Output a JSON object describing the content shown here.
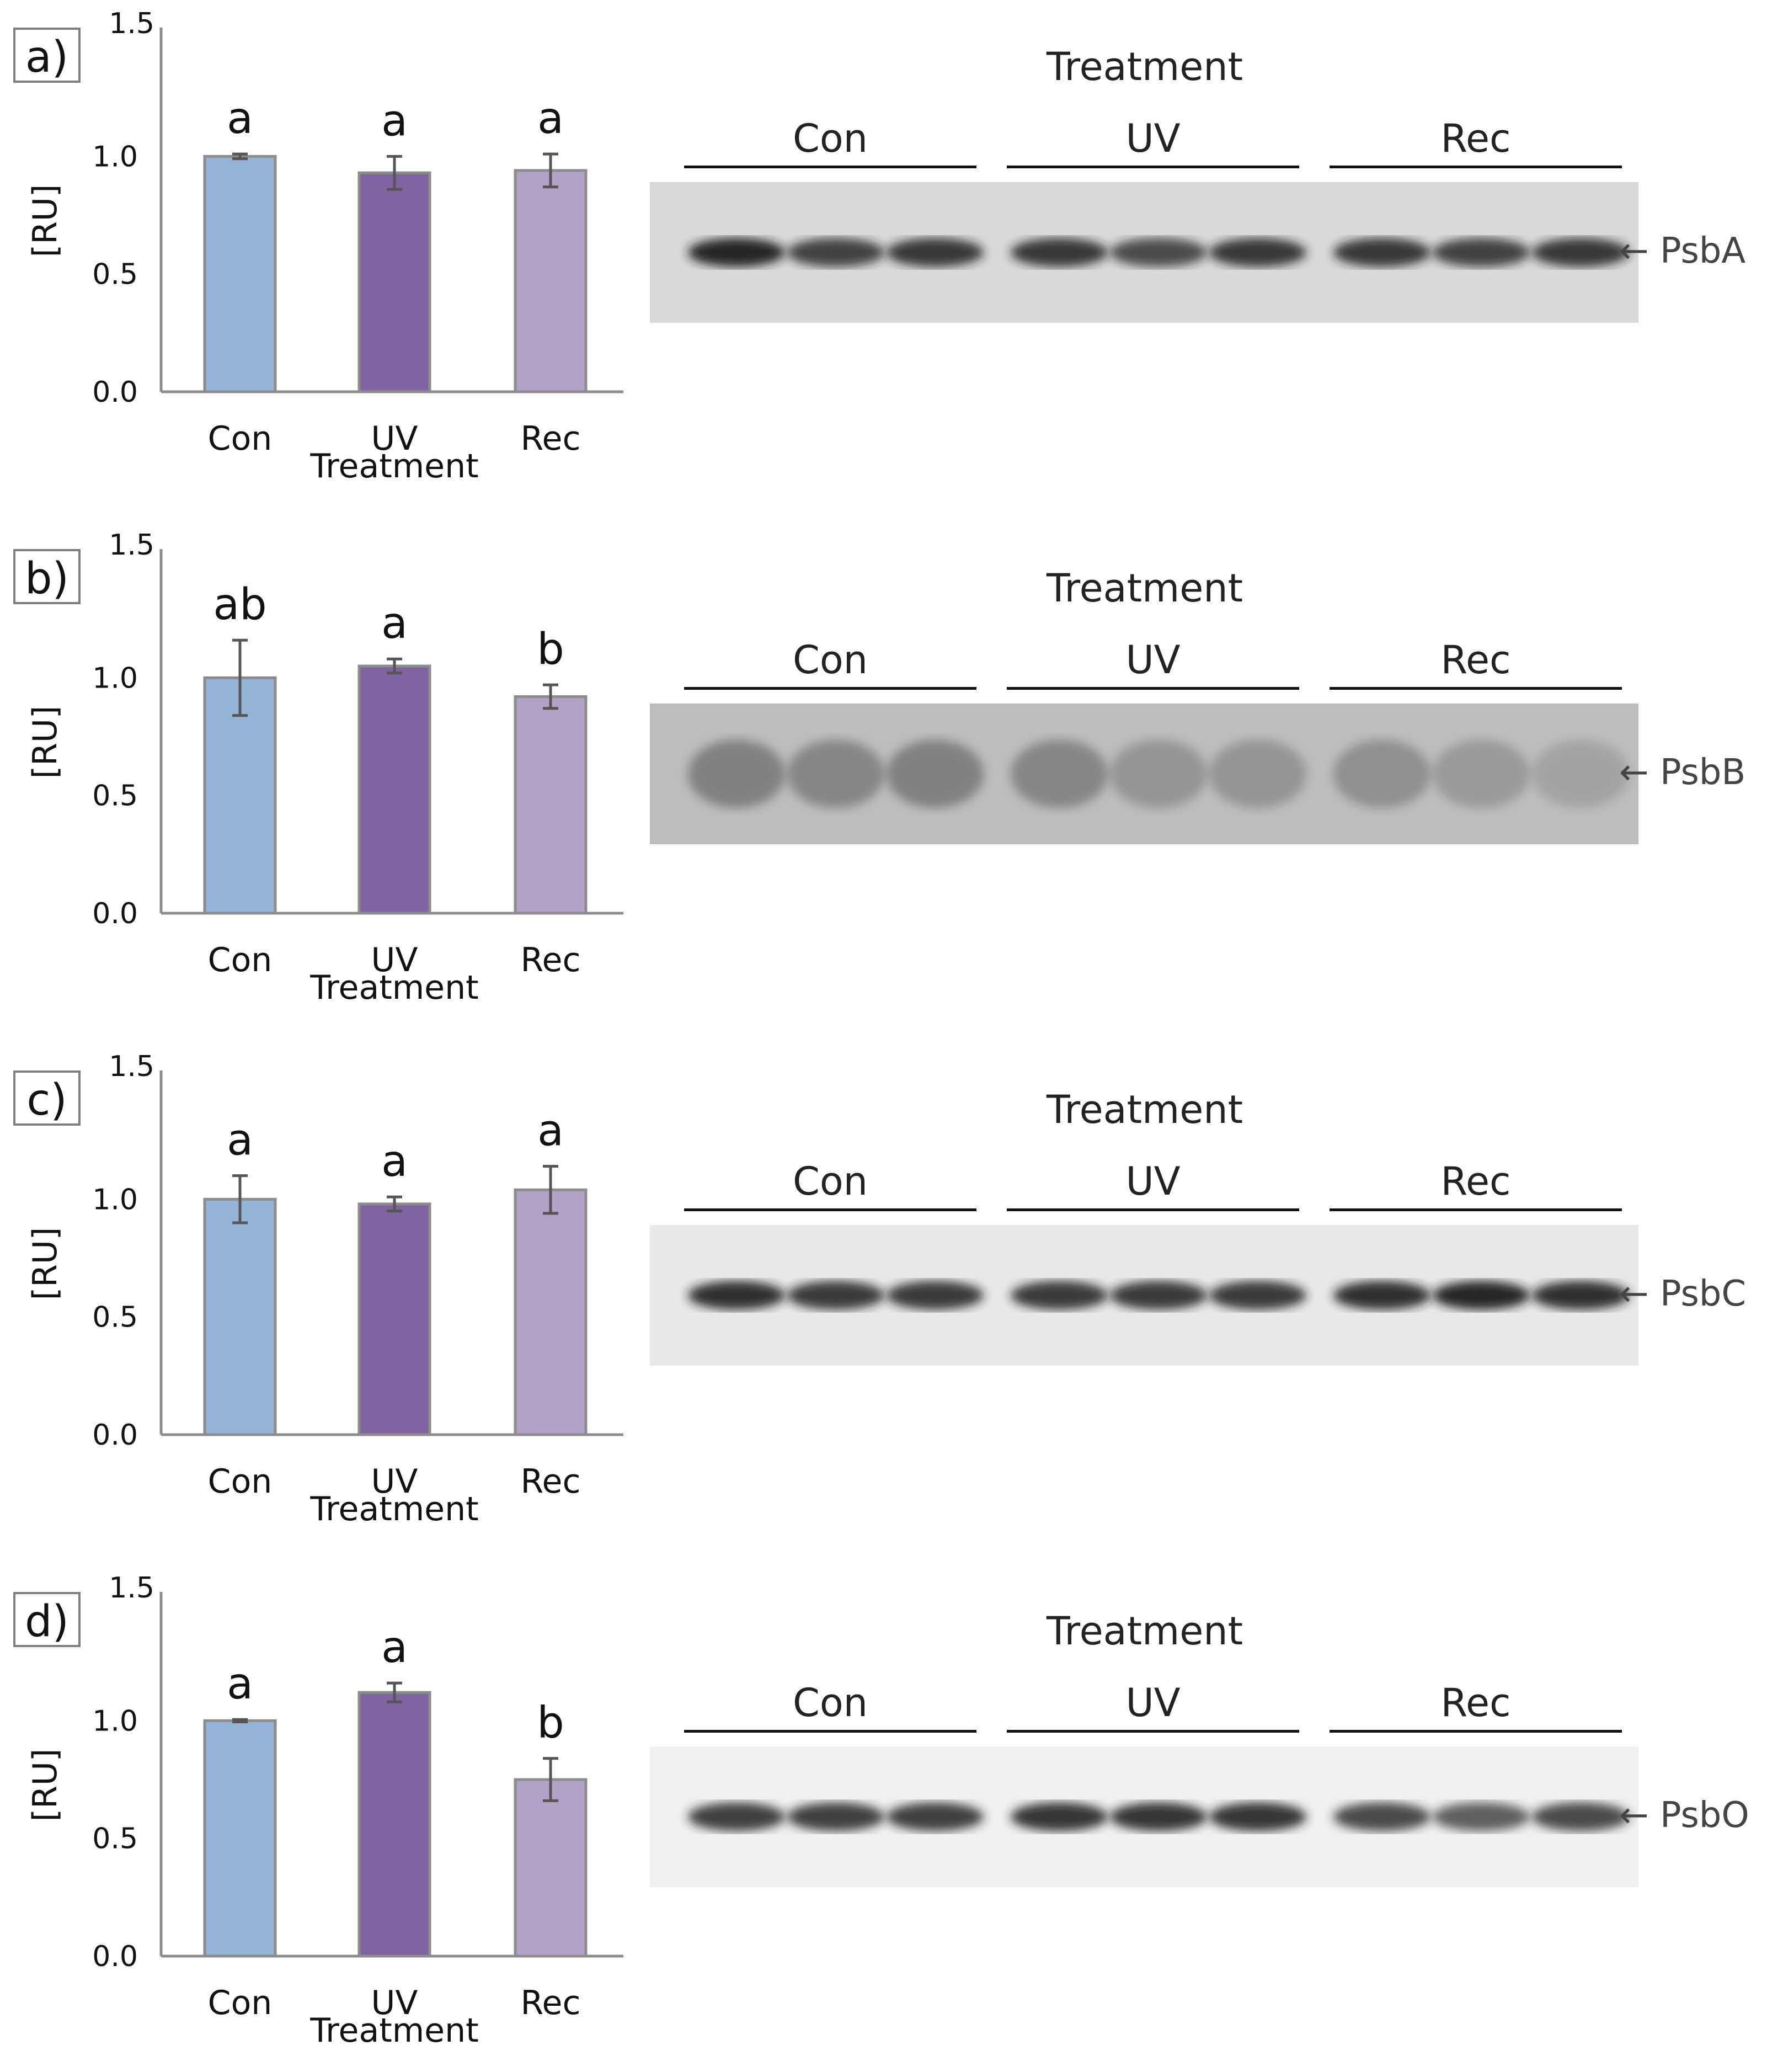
{
  "figure": {
    "panels": [
      {
        "label": "a)",
        "protein": "PsbA",
        "blot_title": "Treatment",
        "lane_groups": [
          "Con",
          "UV",
          "Rec"
        ],
        "blot_shade": "#1c1c1c",
        "blot_background": "#d9d9d9",
        "band_intensity": [
          0.95,
          0.8,
          0.85,
          0.85,
          0.75,
          0.85,
          0.85,
          0.8,
          0.85
        ]
      },
      {
        "label": "b)",
        "protein": "PsbB",
        "blot_title": "Treatment",
        "lane_groups": [
          "Con",
          "UV",
          "Rec"
        ],
        "blot_shade": "#5a5a5a",
        "blot_background": "#bdbdbd",
        "band_intensity": [
          0.6,
          0.55,
          0.6,
          0.55,
          0.4,
          0.4,
          0.45,
          0.35,
          0.25
        ]
      },
      {
        "label": "c)",
        "protein": "PsbC",
        "blot_title": "Treatment",
        "lane_groups": [
          "Con",
          "UV",
          "Rec"
        ],
        "blot_shade": "#1a1a1a",
        "blot_background": "#e8e8e8",
        "band_intensity": [
          0.9,
          0.85,
          0.85,
          0.85,
          0.85,
          0.85,
          0.9,
          0.95,
          0.9
        ]
      },
      {
        "label": "d)",
        "protein": "PsbO",
        "blot_title": "Treatment",
        "lane_groups": [
          "Con",
          "UV",
          "Rec"
        ],
        "blot_shade": "#222222",
        "blot_background": "#f0f0f0",
        "band_intensity": [
          0.85,
          0.85,
          0.85,
          0.9,
          0.9,
          0.9,
          0.8,
          0.7,
          0.8
        ]
      }
    ]
  },
  "chart_data": [
    {
      "type": "bar",
      "panel": "a)",
      "categories": [
        "Con",
        "UV",
        "Rec"
      ],
      "values": [
        1.0,
        0.93,
        0.94
      ],
      "errors": [
        0.01,
        0.07,
        0.07
      ],
      "significance": [
        "a",
        "a",
        "a"
      ],
      "xlabel": "Treatment",
      "ylabel": "[RU]",
      "ylim": [
        0,
        1.5
      ],
      "yticks": [
        "0.0",
        "0.5",
        "1.0",
        "1.5"
      ],
      "colors": [
        "#95b3d7",
        "#8064a2",
        "#b3a2c7"
      ]
    },
    {
      "type": "bar",
      "panel": "b)",
      "categories": [
        "Con",
        "UV",
        "Rec"
      ],
      "values": [
        1.0,
        1.05,
        0.92
      ],
      "errors": [
        0.16,
        0.03,
        0.05
      ],
      "significance": [
        "ab",
        "a",
        "b"
      ],
      "xlabel": "Treatment",
      "ylabel": "[RU]",
      "ylim": [
        0,
        1.5
      ],
      "yticks": [
        "0.0",
        "0.5",
        "1.0",
        "1.5"
      ],
      "colors": [
        "#95b3d7",
        "#8064a2",
        "#b3a2c7"
      ]
    },
    {
      "type": "bar",
      "panel": "c)",
      "categories": [
        "Con",
        "UV",
        "Rec"
      ],
      "values": [
        1.0,
        0.98,
        1.04
      ],
      "errors": [
        0.1,
        0.03,
        0.1
      ],
      "significance": [
        "a",
        "a",
        "a"
      ],
      "xlabel": "Treatment",
      "ylabel": "[RU]",
      "ylim": [
        0,
        1.5
      ],
      "yticks": [
        "0.0",
        "0.5",
        "1.0",
        "1.5"
      ],
      "colors": [
        "#95b3d7",
        "#8064a2",
        "#b3a2c7"
      ]
    },
    {
      "type": "bar",
      "panel": "d)",
      "categories": [
        "Con",
        "UV",
        "Rec"
      ],
      "values": [
        1.0,
        1.12,
        0.75
      ],
      "errors": [
        0.005,
        0.04,
        0.09
      ],
      "significance": [
        "a",
        "a",
        "b"
      ],
      "xlabel": "Treatment",
      "ylabel": "[RU]",
      "ylim": [
        0,
        1.5
      ],
      "yticks": [
        "0.0",
        "0.5",
        "1.0",
        "1.5"
      ],
      "colors": [
        "#95b3d7",
        "#8064a2",
        "#b3a2c7"
      ]
    }
  ]
}
